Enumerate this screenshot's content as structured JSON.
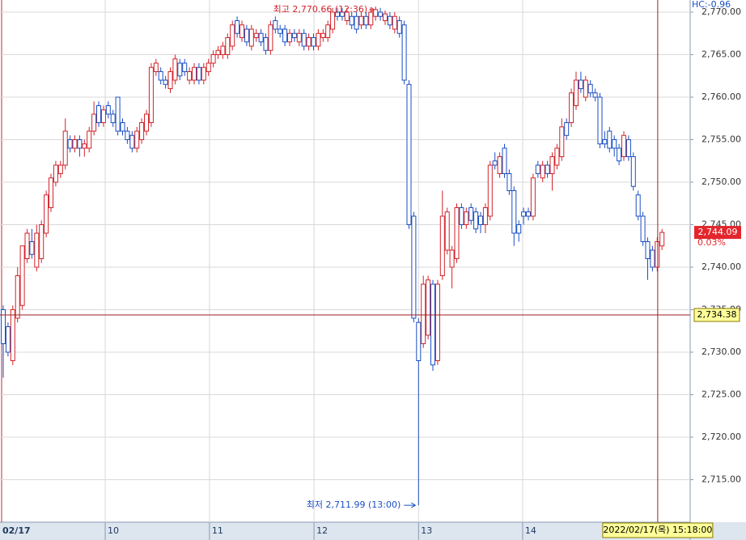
{
  "chart_data": {
    "type": "candlestick",
    "indicator_label": "HC:-0.96",
    "date_label": "02/17",
    "candles": [
      [
        2735,
        2735.5,
        2727,
        2731
      ],
      [
        2733,
        2733.5,
        2729.5,
        2730
      ],
      [
        2729,
        2735.5,
        2728.5,
        2735
      ],
      [
        2734,
        2740,
        2733.5,
        2739
      ],
      [
        2735.5,
        2742.5,
        2735,
        2742.5
      ],
      [
        2741,
        2744.5,
        2740.5,
        2744
      ],
      [
        2743,
        2744.5,
        2741,
        2741.5
      ],
      [
        2740,
        2745,
        2739.5,
        2744
      ],
      [
        2741,
        2745.5,
        2740.5,
        2745
      ],
      [
        2744,
        2749,
        2743.5,
        2748.5
      ],
      [
        2747,
        2751,
        2746.5,
        2750.5
      ],
      [
        2750,
        2752.5,
        2749.5,
        2752
      ],
      [
        2751,
        2752.5,
        2750.5,
        2752
      ],
      [
        2752,
        2757.5,
        2751.5,
        2756
      ],
      [
        2755,
        2755.5,
        2753.5,
        2754
      ],
      [
        2754,
        2755.5,
        2753.5,
        2755
      ],
      [
        2755,
        2755.5,
        2753,
        2754
      ],
      [
        2754,
        2755,
        2753,
        2754.5
      ],
      [
        2754,
        2756.5,
        2753.5,
        2756
      ],
      [
        2756,
        2759.5,
        2755.5,
        2758
      ],
      [
        2759,
        2759.5,
        2756.5,
        2757
      ],
      [
        2757,
        2759,
        2756.5,
        2758.5
      ],
      [
        2759,
        2759.5,
        2757.5,
        2758
      ],
      [
        2758,
        2758.5,
        2756.5,
        2757
      ],
      [
        2760,
        2760,
        2755.5,
        2756
      ],
      [
        2757,
        2757.5,
        2755.5,
        2756
      ],
      [
        2756,
        2756.5,
        2754.5,
        2755
      ],
      [
        2755.5,
        2756,
        2753.5,
        2754
      ],
      [
        2754,
        2756.5,
        2753.5,
        2756
      ],
      [
        2755,
        2757.5,
        2754.5,
        2757
      ],
      [
        2756,
        2758.5,
        2755.5,
        2758
      ],
      [
        2757,
        2764,
        2756.5,
        2763.5
      ],
      [
        2763,
        2764.5,
        2762.5,
        2764
      ],
      [
        2763,
        2763.5,
        2761.5,
        2762
      ],
      [
        2762,
        2762.5,
        2761,
        2761.5
      ],
      [
        2761,
        2763.5,
        2760.5,
        2763
      ],
      [
        2762,
        2765,
        2761.5,
        2764.5
      ],
      [
        2764,
        2764.5,
        2762,
        2762.5
      ],
      [
        2764,
        2764.5,
        2762.5,
        2763
      ],
      [
        2762,
        2763.5,
        2761.5,
        2763
      ],
      [
        2762,
        2764,
        2761.5,
        2763.5
      ],
      [
        2763.5,
        2764,
        2761.5,
        2762
      ],
      [
        2762,
        2764,
        2761.5,
        2763.5
      ],
      [
        2763,
        2764.5,
        2762.5,
        2764
      ],
      [
        2764,
        2765.5,
        2763.5,
        2765
      ],
      [
        2765,
        2766,
        2764.5,
        2765.5
      ],
      [
        2765,
        2766.5,
        2764.5,
        2766
      ],
      [
        2765,
        2767.5,
        2764.5,
        2767
      ],
      [
        2766,
        2769,
        2765.5,
        2768.5
      ],
      [
        2769,
        2769.5,
        2767,
        2767.5
      ],
      [
        2767,
        2769,
        2766.5,
        2768.5
      ],
      [
        2768,
        2768.5,
        2766,
        2766.5
      ],
      [
        2766,
        2768.5,
        2765.5,
        2768
      ],
      [
        2767,
        2768,
        2766.5,
        2767.5
      ],
      [
        2767.5,
        2768,
        2766,
        2766.5
      ],
      [
        2767,
        2767.5,
        2765,
        2765.5
      ],
      [
        2765.5,
        2769,
        2765,
        2768.5
      ],
      [
        2769,
        2769.5,
        2767.5,
        2768
      ],
      [
        2768,
        2768.5,
        2767,
        2767.5
      ],
      [
        2768,
        2768.5,
        2766,
        2766.5
      ],
      [
        2766.5,
        2768,
        2766,
        2767.5
      ],
      [
        2767.5,
        2768,
        2766.5,
        2767
      ],
      [
        2766.5,
        2768,
        2766,
        2767.5
      ],
      [
        2767.5,
        2768,
        2765.5,
        2766
      ],
      [
        2766,
        2767.5,
        2765.5,
        2767
      ],
      [
        2767,
        2767.5,
        2765.5,
        2766
      ],
      [
        2766,
        2768,
        2765.5,
        2767.5
      ],
      [
        2767,
        2768,
        2766.5,
        2767.5
      ],
      [
        2767,
        2769,
        2766.5,
        2768.5
      ],
      [
        2768,
        2770.5,
        2767.5,
        2770
      ],
      [
        2770,
        2770.5,
        2769,
        2769.5
      ],
      [
        2770,
        2770.5,
        2769,
        2769.5
      ],
      [
        2769,
        2770.5,
        2768.5,
        2770
      ],
      [
        2769.5,
        2770,
        2768,
        2768.5
      ],
      [
        2769.5,
        2770,
        2767.5,
        2768
      ],
      [
        2768.5,
        2770,
        2768,
        2769.5
      ],
      [
        2769.5,
        2770,
        2768,
        2768.5
      ],
      [
        2768.5,
        2770.5,
        2768,
        2770
      ],
      [
        2769.5,
        2770.66,
        2769,
        2770.3
      ],
      [
        2770,
        2770.5,
        2769,
        2769.5
      ],
      [
        2769,
        2770.2,
        2768.5,
        2769.8
      ],
      [
        2769.5,
        2770,
        2768,
        2768.5
      ],
      [
        2768,
        2770,
        2767.5,
        2769.5
      ],
      [
        2769,
        2769.5,
        2767,
        2767.5
      ],
      [
        2768.5,
        2769,
        2761.5,
        2762
      ],
      [
        2761.5,
        2762,
        2744.5,
        2745
      ],
      [
        2746,
        2746.5,
        2733.5,
        2734
      ],
      [
        2733.5,
        2734,
        2711.99,
        2729
      ],
      [
        2731,
        2739,
        2730.5,
        2738
      ],
      [
        2732,
        2739,
        2731.5,
        2738.5
      ],
      [
        2738,
        2738.5,
        2727.8,
        2728.5
      ],
      [
        2729,
        2738.5,
        2728.5,
        2738
      ],
      [
        2739,
        2749,
        2738.5,
        2746
      ],
      [
        2742,
        2747,
        2741.5,
        2746.5
      ],
      [
        2740,
        2742.5,
        2737.5,
        2742
      ],
      [
        2741,
        2747.5,
        2740.5,
        2747
      ],
      [
        2747,
        2747.5,
        2744.5,
        2745
      ],
      [
        2745,
        2747,
        2744.5,
        2746.5
      ],
      [
        2747,
        2747.5,
        2745,
        2745.5
      ],
      [
        2746.5,
        2747,
        2744,
        2744.5
      ],
      [
        2746,
        2746.5,
        2744,
        2745
      ],
      [
        2745,
        2747.5,
        2744,
        2747
      ],
      [
        2746,
        2752.5,
        2745.5,
        2752
      ],
      [
        2752.5,
        2753.5,
        2751.5,
        2752
      ],
      [
        2751,
        2753.5,
        2750.5,
        2753
      ],
      [
        2754,
        2754.5,
        2750.5,
        2751
      ],
      [
        2751,
        2751.5,
        2748.5,
        2749
      ],
      [
        2749,
        2749.5,
        2742.5,
        2744
      ],
      [
        2745,
        2745.5,
        2743,
        2744
      ],
      [
        2746.5,
        2747,
        2745,
        2746
      ],
      [
        2746.5,
        2747,
        2745.5,
        2746
      ],
      [
        2746,
        2751,
        2745.5,
        2750.5
      ],
      [
        2752,
        2752.5,
        2750.5,
        2751
      ],
      [
        2750.5,
        2752.5,
        2750,
        2752
      ],
      [
        2752,
        2752.5,
        2750.5,
        2751
      ],
      [
        2751,
        2753.5,
        2749,
        2753
      ],
      [
        2752,
        2754.5,
        2751.5,
        2754
      ],
      [
        2753,
        2757.5,
        2752.5,
        2756.5
      ],
      [
        2757,
        2757.5,
        2755,
        2755.5
      ],
      [
        2757,
        2761,
        2756.5,
        2760.5
      ],
      [
        2759,
        2763,
        2758.5,
        2762
      ],
      [
        2762,
        2763,
        2760.5,
        2761
      ],
      [
        2760,
        2762.5,
        2759.5,
        2762
      ],
      [
        2761.5,
        2762,
        2760,
        2760.5
      ],
      [
        2760.5,
        2761,
        2759.5,
        2760
      ],
      [
        2760,
        2760.5,
        2754,
        2754.5
      ],
      [
        2755,
        2756,
        2754,
        2754.5
      ],
      [
        2756,
        2756.5,
        2753.5,
        2754
      ],
      [
        2755,
        2755.5,
        2753,
        2754
      ],
      [
        2754,
        2754.5,
        2752,
        2752.5
      ],
      [
        2753,
        2756,
        2752.5,
        2755.5
      ],
      [
        2755,
        2755.5,
        2752.5,
        2753
      ],
      [
        2753,
        2753.5,
        2749,
        2749.5
      ],
      [
        2748.5,
        2749,
        2745.5,
        2746
      ],
      [
        2746,
        2746.5,
        2742.5,
        2743
      ],
      [
        2743,
        2743.5,
        2738.5,
        2741
      ],
      [
        2742,
        2742.5,
        2739.5,
        2740
      ],
      [
        2740,
        2743.5,
        2739.5,
        2743
      ],
      [
        2742.5,
        2744.5,
        2742,
        2744.09
      ]
    ],
    "up_color": "#d2232a",
    "down_color": "#1a4fc4",
    "xlim": [
      -0.68,
      143.9
    ],
    "xticks": [
      {
        "value": 21.36,
        "label": "10"
      },
      {
        "value": 43.2,
        "label": "11"
      },
      {
        "value": 65.1,
        "label": "12"
      },
      {
        "value": 87.0,
        "label": "13"
      },
      {
        "value": 108.8,
        "label": "14"
      }
    ],
    "ylim": [
      2710,
      2771.43
    ],
    "yticks": [
      {
        "value": 2715,
        "label": "2,715.00"
      },
      {
        "value": 2720,
        "label": "2,720.00"
      },
      {
        "value": 2725,
        "label": "2,725.00"
      },
      {
        "value": 2730,
        "label": "2,730.00"
      },
      {
        "value": 2735,
        "label": "2,735.00"
      },
      {
        "value": 2740,
        "label": "2,740.00"
      },
      {
        "value": 2745,
        "label": "2,745.00"
      },
      {
        "value": 2750,
        "label": "2,750.00"
      },
      {
        "value": 2755,
        "label": "2,755.00"
      },
      {
        "value": 2760,
        "label": "2,760.00"
      },
      {
        "value": 2765,
        "label": "2,765.00"
      },
      {
        "value": 2770,
        "label": "2,770.00"
      }
    ],
    "grid": true,
    "high_annotation": "최고 2,770.66 (12:36)",
    "low_annotation": "최저 2,711.99 (13:00)",
    "last_price": {
      "value": 2744.09,
      "label": "2,744.09"
    },
    "change_pct": {
      "value": 0.03,
      "label": "0.03%"
    },
    "crosshair": {
      "y": {
        "value": 2734.38,
        "label": "2,734.38"
      },
      "x": 137.1,
      "x_label": "2022/02/17(목) 15:18:00"
    }
  }
}
